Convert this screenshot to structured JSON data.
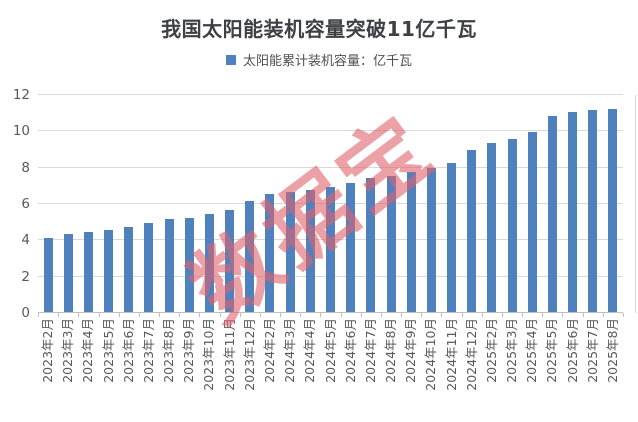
{
  "title": "我国太阳能装机容量突破11亿千瓦",
  "legend": {
    "label": "太阳能累计装机容量：亿千瓦",
    "marker_color": "#4E81BD"
  },
  "watermark": "数据宝",
  "colors": {
    "bar": "#4E81BD",
    "gridline": "#D9D9D9",
    "axis_line": "#BFBFBF",
    "axis_text": "#595959",
    "title_text": "#3E4046",
    "watermark": "rgba(222,98,106,0.6)"
  },
  "chart_data": {
    "type": "bar",
    "title": "我国太阳能装机容量突破11亿千瓦",
    "series_name": "太阳能累计装机容量：亿千瓦",
    "categories": [
      "2023年2月",
      "2023年3月",
      "2023年4月",
      "2023年5月",
      "2023年6月",
      "2023年7月",
      "2023年8月",
      "2023年9月",
      "2023年10月",
      "2023年11月",
      "2023年12月",
      "2024年2月",
      "2024年3月",
      "2024年4月",
      "2024年5月",
      "2024年6月",
      "2024年7月",
      "2024年8月",
      "2024年9月",
      "2024年10月",
      "2024年11月",
      "2024年12月",
      "2025年2月",
      "2025年3月",
      "2025年4月",
      "2025年5月",
      "2025年6月",
      "2025年7月",
      "2025年8月"
    ],
    "values": [
      4.1,
      4.3,
      4.4,
      4.5,
      4.7,
      4.9,
      5.1,
      5.2,
      5.4,
      5.6,
      6.1,
      6.5,
      6.6,
      6.7,
      6.9,
      7.1,
      7.4,
      7.5,
      7.7,
      7.9,
      8.2,
      8.9,
      9.3,
      9.5,
      9.9,
      10.8,
      11.0,
      11.1,
      11.2
    ],
    "ylabel": "",
    "xlabel": "",
    "ylim": [
      0,
      12
    ],
    "y_ticks": [
      0,
      2,
      4,
      6,
      8,
      10,
      12
    ],
    "grid": true,
    "legend_position": "top"
  }
}
